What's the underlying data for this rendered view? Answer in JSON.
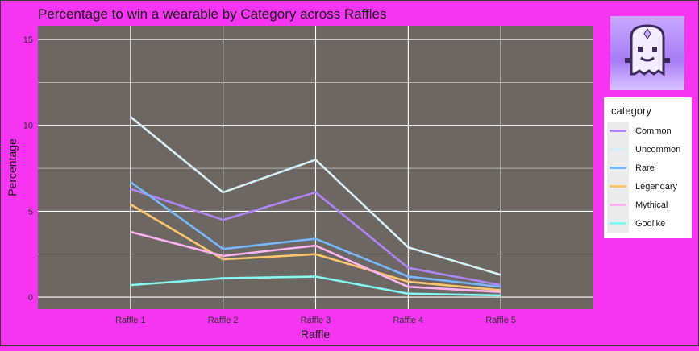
{
  "chart_data": {
    "type": "line",
    "title": "Percentage to win a wearable by Category across Raffles",
    "xlabel": "Raffle",
    "ylabel": "Percentage",
    "categories": [
      "Raffle 1",
      "Raffle 2",
      "Raffle 3",
      "Raffle 4",
      "Raffle 5"
    ],
    "ylim": [
      -0.7,
      15.8
    ],
    "yticks": [
      0,
      5,
      10,
      15
    ],
    "grid": true,
    "legend_title": "category",
    "legend_position": "right",
    "series": [
      {
        "name": "Common",
        "color": "#b184f5",
        "values": [
          6.3,
          4.5,
          6.1,
          1.7,
          0.7
        ]
      },
      {
        "name": "Uncommon",
        "color": "#d6eef5",
        "values": [
          10.5,
          6.1,
          8.0,
          2.9,
          1.3
        ]
      },
      {
        "name": "Rare",
        "color": "#76b8ff",
        "values": [
          6.7,
          2.8,
          3.4,
          1.2,
          0.6
        ]
      },
      {
        "name": "Legendary",
        "color": "#ffc56b",
        "values": [
          5.4,
          2.2,
          2.5,
          0.9,
          0.4
        ]
      },
      {
        "name": "Mythical",
        "color": "#ffb4f0",
        "values": [
          3.8,
          2.4,
          3.0,
          0.6,
          0.3
        ]
      },
      {
        "name": "Godlike",
        "color": "#86f8f2",
        "values": [
          0.7,
          1.1,
          1.2,
          0.2,
          0.1
        ]
      }
    ]
  },
  "colors": {
    "background": "#f535f1",
    "panel": "#6d6764",
    "grid": "#ffffff"
  },
  "logo": {
    "icon": "ghost-icon"
  }
}
